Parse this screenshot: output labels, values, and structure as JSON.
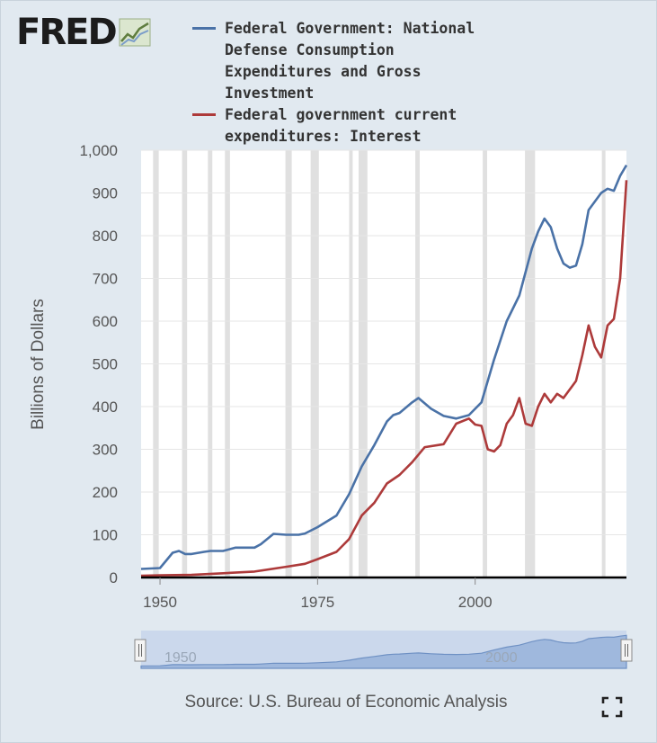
{
  "logo": {
    "text": "FRED",
    "icon": "chart-line-icon"
  },
  "colors": {
    "series1": "#4a72a7",
    "series2": "#ad3a3a",
    "recession": "#e0e0e0",
    "plot_bg": "#ffffff",
    "navigator_fill": "#a9bfe0",
    "navigator_line": "#6f91c4"
  },
  "chart_data": {
    "type": "line",
    "title": "",
    "xlabel": "",
    "ylabel": "Billions of Dollars",
    "xlim": [
      1947,
      2024
    ],
    "ylim": [
      0,
      1000
    ],
    "y_ticks": [
      0,
      100,
      200,
      300,
      400,
      500,
      600,
      700,
      800,
      900,
      1000
    ],
    "y_tick_labels": [
      "0",
      "100",
      "200",
      "300",
      "400",
      "500",
      "600",
      "700",
      "800",
      "900",
      "1,000"
    ],
    "x_ticks": [
      1950,
      1975,
      2000
    ],
    "x_tick_labels": [
      "1950",
      "1975",
      "2000"
    ],
    "recessions": [
      [
        1948.9,
        1949.8
      ],
      [
        1953.5,
        1954.3
      ],
      [
        1957.6,
        1958.3
      ],
      [
        1960.3,
        1961.1
      ],
      [
        1969.9,
        1970.9
      ],
      [
        1973.9,
        1975.2
      ],
      [
        1980.0,
        1980.5
      ],
      [
        1981.5,
        1982.9
      ],
      [
        1990.5,
        1991.2
      ],
      [
        2001.2,
        2001.9
      ],
      [
        2007.9,
        2009.5
      ],
      [
        2020.1,
        2020.4
      ]
    ],
    "series": [
      {
        "name": "Federal Government: National Defense Consumption Expenditures and Gross Investment",
        "x": [
          1947,
          1950,
          1951,
          1952,
          1953,
          1954,
          1955,
          1957,
          1958,
          1960,
          1962,
          1965,
          1966,
          1968,
          1970,
          1972,
          1973,
          1975,
          1978,
          1980,
          1982,
          1984,
          1986,
          1987,
          1988,
          1990,
          1991,
          1993,
          1995,
          1997,
          1999,
          2001,
          2003,
          2005,
          2007,
          2009,
          2010,
          2011,
          2012,
          2013,
          2014,
          2015,
          2016,
          2017,
          2018,
          2019,
          2020,
          2021,
          2022,
          2023,
          2024
        ],
        "values": [
          20,
          22,
          40,
          58,
          62,
          55,
          55,
          60,
          62,
          62,
          70,
          70,
          78,
          102,
          100,
          100,
          103,
          118,
          145,
          195,
          260,
          310,
          365,
          380,
          385,
          410,
          420,
          395,
          378,
          372,
          380,
          410,
          510,
          600,
          660,
          770,
          810,
          840,
          820,
          770,
          735,
          725,
          730,
          780,
          860,
          880,
          900,
          910,
          905,
          940,
          965
        ]
      },
      {
        "name": "Federal government current expenditures: Interest payments",
        "x": [
          1947,
          1950,
          1955,
          1960,
          1965,
          1970,
          1973,
          1975,
          1978,
          1980,
          1982,
          1984,
          1986,
          1988,
          1990,
          1992,
          1995,
          1997,
          1999,
          2000,
          2001,
          2002,
          2003,
          2004,
          2005,
          2006,
          2007,
          2008,
          2009,
          2010,
          2011,
          2012,
          2013,
          2014,
          2015,
          2016,
          2017,
          2018,
          2019,
          2020,
          2021,
          2022,
          2023,
          2024
        ],
        "values": [
          4,
          5,
          6,
          10,
          14,
          25,
          32,
          43,
          60,
          90,
          145,
          175,
          220,
          240,
          270,
          305,
          312,
          360,
          372,
          358,
          355,
          300,
          295,
          310,
          360,
          380,
          420,
          360,
          355,
          400,
          430,
          410,
          430,
          420,
          440,
          460,
          520,
          590,
          540,
          515,
          590,
          605,
          700,
          930
        ]
      }
    ]
  },
  "navigator": {
    "labels": [
      "1950",
      "2000"
    ],
    "handle_left_icon": "drag-handle-icon",
    "handle_right_icon": "drag-handle-icon"
  },
  "source": "Source: U.S. Bureau of Economic Analysis",
  "fullscreen_icon": "fullscreen-icon"
}
